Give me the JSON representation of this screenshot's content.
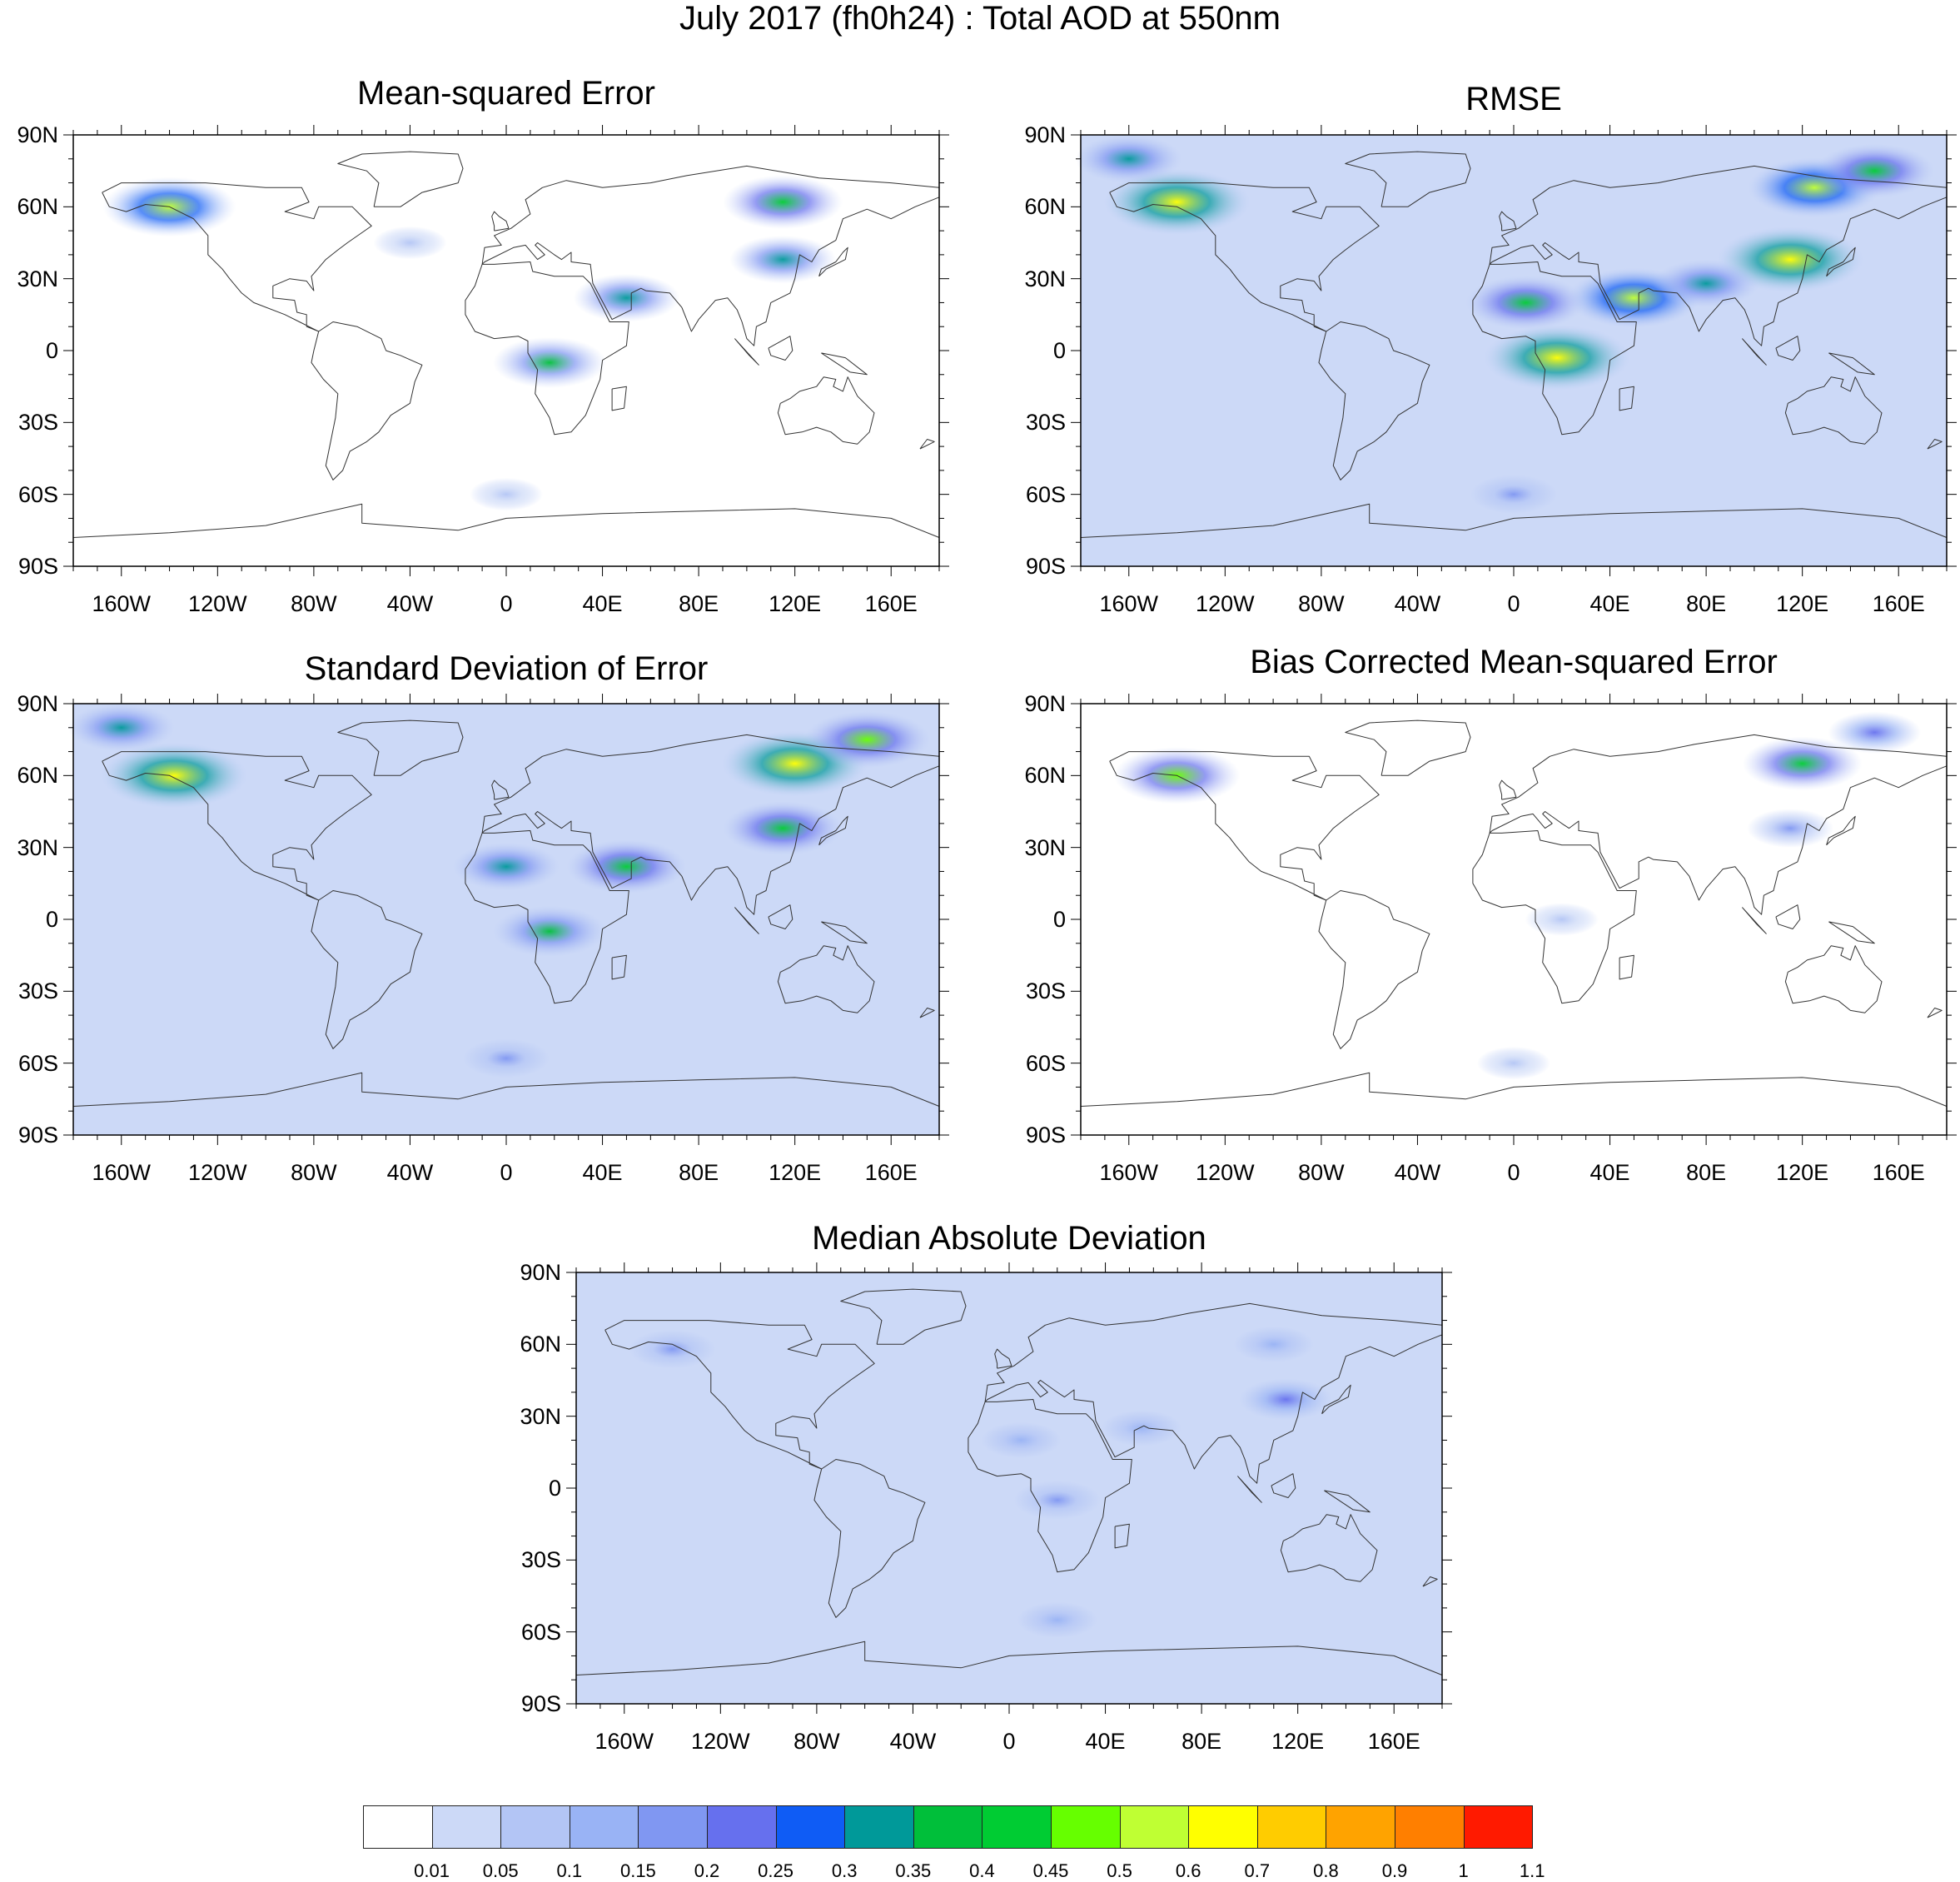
{
  "title": "July 2017 (fh0h24) : Total AOD at 550nm",
  "lat_labels": [
    "90N",
    "60N",
    "30N",
    "0",
    "30S",
    "60S",
    "90S"
  ],
  "lon_labels": [
    "160W",
    "120W",
    "80W",
    "40W",
    "0",
    "40E",
    "80E",
    "120E",
    "160E"
  ],
  "panels": [
    {
      "title": "Mean-squared Error",
      "background": "#ffffff",
      "hotspots": [
        {
          "lon": -140,
          "lat": 60,
          "level": 0.5
        },
        {
          "lon": 18,
          "lat": -5,
          "level": 0.35
        },
        {
          "lon": 50,
          "lat": 22,
          "level": 0.3
        },
        {
          "lon": 115,
          "lat": 62,
          "level": 0.4
        },
        {
          "lon": 115,
          "lat": 38,
          "level": 0.3
        },
        {
          "lon": -40,
          "lat": 45,
          "level": 0.05
        },
        {
          "lon": 0,
          "lat": -60,
          "level": 0.05
        }
      ]
    },
    {
      "title": "RMSE",
      "background": "#ccd9f7",
      "hotspots": [
        {
          "lon": -140,
          "lat": 62,
          "level": 0.6
        },
        {
          "lon": 18,
          "lat": -3,
          "level": 0.6
        },
        {
          "lon": 50,
          "lat": 22,
          "level": 0.5
        },
        {
          "lon": 5,
          "lat": 20,
          "level": 0.4
        },
        {
          "lon": 115,
          "lat": 38,
          "level": 0.6
        },
        {
          "lon": 125,
          "lat": 68,
          "level": 0.5
        },
        {
          "lon": 150,
          "lat": 75,
          "level": 0.4
        },
        {
          "lon": 80,
          "lat": 28,
          "level": 0.3
        },
        {
          "lon": 0,
          "lat": -60,
          "level": 0.15
        },
        {
          "lon": -160,
          "lat": 80,
          "level": 0.3
        }
      ]
    },
    {
      "title": "Standard Deviation of Error",
      "background": "#ccd9f7",
      "hotspots": [
        {
          "lon": -138,
          "lat": 60,
          "level": 0.6
        },
        {
          "lon": 18,
          "lat": -5,
          "level": 0.35
        },
        {
          "lon": 50,
          "lat": 22,
          "level": 0.4
        },
        {
          "lon": 0,
          "lat": 22,
          "level": 0.3
        },
        {
          "lon": 120,
          "lat": 65,
          "level": 0.6
        },
        {
          "lon": 150,
          "lat": 75,
          "level": 0.45
        },
        {
          "lon": 115,
          "lat": 38,
          "level": 0.4
        },
        {
          "lon": 0,
          "lat": -58,
          "level": 0.15
        },
        {
          "lon": -160,
          "lat": 80,
          "level": 0.3
        }
      ]
    },
    {
      "title": "Bias Corrected Mean-squared Error",
      "background": "#ffffff",
      "hotspots": [
        {
          "lon": -140,
          "lat": 60,
          "level": 0.45
        },
        {
          "lon": 120,
          "lat": 65,
          "level": 0.4
        },
        {
          "lon": 150,
          "lat": 78,
          "level": 0.2
        },
        {
          "lon": 115,
          "lat": 38,
          "level": 0.15
        },
        {
          "lon": 20,
          "lat": 0,
          "level": 0.05
        },
        {
          "lon": 0,
          "lat": -60,
          "level": 0.05
        }
      ]
    },
    {
      "title": "Median Absolute Deviation",
      "background": "#ccd9f7",
      "hotspots": [
        {
          "lon": 115,
          "lat": 37,
          "level": 0.2
        },
        {
          "lon": 20,
          "lat": -5,
          "level": 0.15
        },
        {
          "lon": 5,
          "lat": 20,
          "level": 0.1
        },
        {
          "lon": 55,
          "lat": 25,
          "level": 0.1
        },
        {
          "lon": 110,
          "lat": 60,
          "level": 0.1
        },
        {
          "lon": -140,
          "lat": 58,
          "level": 0.15
        },
        {
          "lon": 20,
          "lat": -55,
          "level": 0.1
        }
      ]
    }
  ],
  "colorbar": {
    "labels": [
      "0.01",
      "0.05",
      "0.1",
      "0.15",
      "0.2",
      "0.25",
      "0.3",
      "0.35",
      "0.4",
      "0.45",
      "0.5",
      "0.6",
      "0.7",
      "0.8",
      "0.9",
      "1",
      "1.1"
    ],
    "colors": [
      "#ffffff",
      "#ccd9f7",
      "#b3c5f5",
      "#99b3f5",
      "#8097f2",
      "#6670ee",
      "#0f5cf5",
      "#009999",
      "#00bf3a",
      "#00cc33",
      "#66ff00",
      "#bfff33",
      "#ffff00",
      "#ffcc00",
      "#ffa300",
      "#ff7f00",
      "#ff1a00"
    ]
  }
}
